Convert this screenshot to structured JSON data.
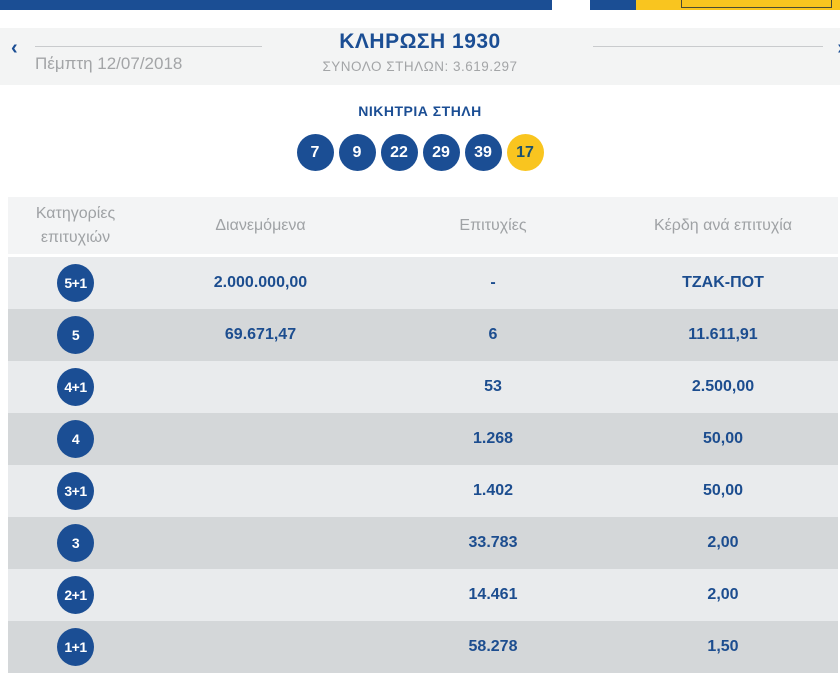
{
  "colors": {
    "blue": "#1b4e94",
    "yellow": "#f9c51f"
  },
  "draw_header": {
    "prev_icon": "‹",
    "next_icon": "›",
    "date": "Πέμπτη 12/07/2018",
    "title": "ΚΛΗΡΩΣΗ 1930",
    "subtitle": "ΣΥΝΟΛΟ ΣΤΗΛΩΝ: 3.619.297"
  },
  "winning": {
    "title": "ΝΙΚΗΤΡΙΑ ΣΤΗΛΗ",
    "numbers": [
      "7",
      "9",
      "22",
      "29",
      "39"
    ],
    "joker": "17"
  },
  "table": {
    "columns": {
      "category": "Κατηγορίες επιτυχιών",
      "distributed": "Διανεμόμενα",
      "winners": "Επιτυχίες",
      "prize": "Κέρδη ανά επιτυχία"
    },
    "rows": [
      {
        "category": "5+1",
        "distributed": "2.000.000,00",
        "winners": "-",
        "prize": "ΤΖΑΚ-ΠΟΤ"
      },
      {
        "category": "5",
        "distributed": "69.671,47",
        "winners": "6",
        "prize": "11.611,91"
      },
      {
        "category": "4+1",
        "distributed": "",
        "winners": "53",
        "prize": "2.500,00"
      },
      {
        "category": "4",
        "distributed": "",
        "winners": "1.268",
        "prize": "50,00"
      },
      {
        "category": "3+1",
        "distributed": "",
        "winners": "1.402",
        "prize": "50,00"
      },
      {
        "category": "3",
        "distributed": "",
        "winners": "33.783",
        "prize": "2,00"
      },
      {
        "category": "2+1",
        "distributed": "",
        "winners": "14.461",
        "prize": "2,00"
      },
      {
        "category": "1+1",
        "distributed": "",
        "winners": "58.278",
        "prize": "1,50"
      }
    ]
  }
}
